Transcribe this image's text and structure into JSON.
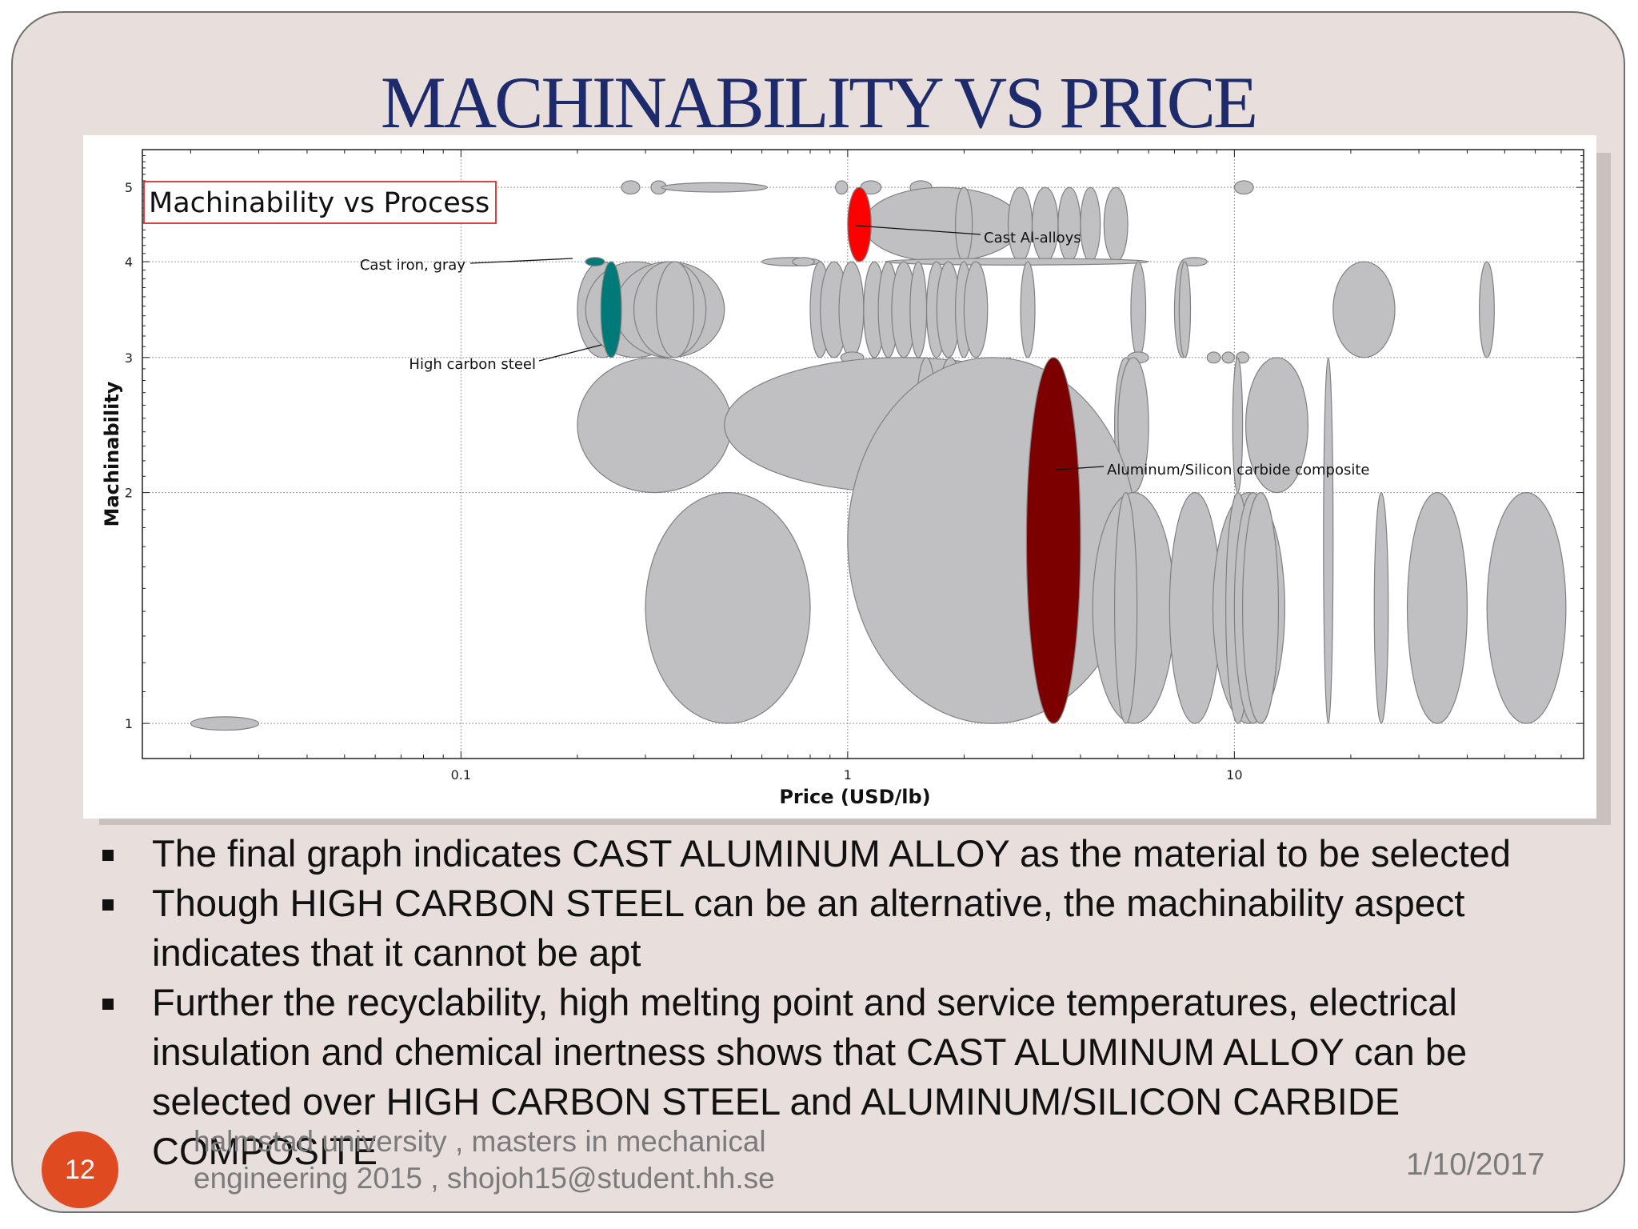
{
  "slide": {
    "title": "MACHINABILITY VS PRICE",
    "bullets": [
      "The final graph indicates CAST ALUMINUM ALLOY  as the material to be selected",
      "Though HIGH CARBON STEEL can be an alternative, the machinability aspect indicates that it cannot be apt",
      "Further the recyclability, high melting point and service temperatures, electrical insulation and chemical inertness shows that CAST ALUMINUM ALLOY can be selected over HIGH CARBON STEEL and ALUMINUM/SILICON CARBIDE COMPOSITE"
    ],
    "page_number": "12",
    "footer": "halmstad university , masters in mechanical engineering 2015 , shojoh15@student.hh.se",
    "date": "1/10/2017"
  },
  "chart_data": {
    "type": "scatter",
    "title": "Machinability vs Process",
    "xlabel": "Price (USD/lb)",
    "ylabel": "Machinability",
    "x_scale": "log",
    "y_scale": "log",
    "xlim": [
      0.015,
      80
    ],
    "ylim": [
      0.9,
      5.6
    ],
    "x_ticks": [
      {
        "value": 0.1,
        "label": "0.1"
      },
      {
        "value": 1,
        "label": "1"
      },
      {
        "value": 10,
        "label": "10"
      }
    ],
    "y_ticks": [
      {
        "value": 1,
        "label": "1"
      },
      {
        "value": 2,
        "label": "2"
      },
      {
        "value": 3,
        "label": "3"
      },
      {
        "value": 4,
        "label": "4"
      },
      {
        "value": 5,
        "label": "5"
      }
    ],
    "grid": true,
    "colors": {
      "default": "#c0bfc2",
      "outline": "#808080",
      "cast_al_alloys": "#ff0000",
      "high_carbon_steel": "#007a78",
      "cast_iron_gray": "#007a78",
      "al_sic_composite": "#7d0000"
    },
    "highlighted": [
      {
        "name": "Cast Al-alloys",
        "color": "cast_al_alloys",
        "x": [
          1.0,
          1.15
        ],
        "y": [
          4.0,
          5.0
        ]
      },
      {
        "name": "Cast iron, gray",
        "color": "cast_iron_gray",
        "x": [
          0.21,
          0.235
        ],
        "y": [
          3.95,
          4.05
        ]
      },
      {
        "name": "High carbon steel",
        "color": "high_carbon_steel",
        "x": [
          0.23,
          0.26
        ],
        "y": [
          3.0,
          4.0
        ]
      },
      {
        "name": "Aluminum/Silicon carbide composite",
        "color": "al_sic_composite",
        "x": [
          2.9,
          4.0
        ],
        "y": [
          1.0,
          3.0
        ]
      }
    ],
    "materials": [
      {
        "x": [
          0.02,
          0.03
        ],
        "y": [
          0.98,
          1.02
        ]
      },
      {
        "x": [
          0.26,
          0.29
        ],
        "y": [
          4.9,
          5.1
        ]
      },
      {
        "x": [
          0.31,
          0.34
        ],
        "y": [
          4.9,
          5.1
        ]
      },
      {
        "x": [
          0.33,
          0.62
        ],
        "y": [
          4.93,
          5.07
        ]
      },
      {
        "x": [
          0.93,
          1.0
        ],
        "y": [
          4.9,
          5.1
        ]
      },
      {
        "x": [
          1.08,
          1.22
        ],
        "y": [
          4.9,
          5.1
        ]
      },
      {
        "x": [
          1.45,
          1.65
        ],
        "y": [
          4.9,
          5.1
        ]
      },
      {
        "x": [
          1.1,
          2.8
        ],
        "y": [
          4.0,
          5.0
        ]
      },
      {
        "x": [
          1.9,
          2.1
        ],
        "y": [
          4.0,
          5.0
        ]
      },
      {
        "x": [
          2.6,
          3.0
        ],
        "y": [
          4.0,
          5.0
        ]
      },
      {
        "x": [
          3.0,
          3.5
        ],
        "y": [
          4.0,
          5.0
        ]
      },
      {
        "x": [
          3.5,
          4.0
        ],
        "y": [
          4.0,
          5.0
        ]
      },
      {
        "x": [
          4.0,
          4.5
        ],
        "y": [
          4.0,
          5.0
        ]
      },
      {
        "x": [
          4.6,
          5.3
        ],
        "y": [
          4.0,
          5.0
        ]
      },
      {
        "x": [
          10.0,
          11.2
        ],
        "y": [
          4.9,
          5.1
        ]
      },
      {
        "x": [
          0.6,
          0.85
        ],
        "y": [
          3.95,
          4.05
        ]
      },
      {
        "x": [
          0.72,
          0.82
        ],
        "y": [
          3.95,
          4.05
        ]
      },
      {
        "x": [
          1.25,
          6.0
        ],
        "y": [
          3.96,
          4.04
        ]
      },
      {
        "x": [
          7.3,
          8.5
        ],
        "y": [
          3.95,
          4.05
        ]
      },
      {
        "x": [
          0.2,
          0.27
        ],
        "y": [
          3.0,
          4.0
        ]
      },
      {
        "x": [
          0.21,
          0.38
        ],
        "y": [
          3.0,
          4.0
        ]
      },
      {
        "x": [
          0.25,
          0.48
        ],
        "y": [
          3.0,
          4.0
        ]
      },
      {
        "x": [
          0.28,
          0.43
        ],
        "y": [
          3.0,
          4.0
        ]
      },
      {
        "x": [
          0.32,
          0.4
        ],
        "y": [
          3.0,
          4.0
        ]
      },
      {
        "x": [
          0.8,
          0.9
        ],
        "y": [
          3.0,
          4.0
        ]
      },
      {
        "x": [
          0.85,
          1.0
        ],
        "y": [
          3.0,
          4.0
        ]
      },
      {
        "x": [
          0.95,
          1.1
        ],
        "y": [
          3.0,
          4.0
        ]
      },
      {
        "x": [
          1.1,
          1.25
        ],
        "y": [
          3.0,
          4.0
        ]
      },
      {
        "x": [
          1.2,
          1.35
        ],
        "y": [
          3.0,
          4.0
        ]
      },
      {
        "x": [
          1.3,
          1.5
        ],
        "y": [
          3.0,
          4.0
        ]
      },
      {
        "x": [
          1.45,
          1.6
        ],
        "y": [
          3.0,
          4.0
        ]
      },
      {
        "x": [
          1.6,
          1.8
        ],
        "y": [
          3.0,
          4.0
        ]
      },
      {
        "x": [
          1.7,
          1.95
        ],
        "y": [
          3.0,
          4.0
        ]
      },
      {
        "x": [
          1.9,
          2.1
        ],
        "y": [
          3.0,
          4.0
        ]
      },
      {
        "x": [
          2.0,
          2.3
        ],
        "y": [
          3.0,
          4.0
        ]
      },
      {
        "x": [
          2.8,
          3.05
        ],
        "y": [
          3.0,
          4.0
        ]
      },
      {
        "x": [
          5.4,
          5.9
        ],
        "y": [
          3.0,
          4.0
        ]
      },
      {
        "x": [
          7.0,
          7.7
        ],
        "y": [
          3.0,
          4.0
        ]
      },
      {
        "x": [
          7.2,
          7.7
        ],
        "y": [
          3.0,
          4.0
        ]
      },
      {
        "x": [
          18.0,
          26.0
        ],
        "y": [
          3.0,
          4.0
        ]
      },
      {
        "x": [
          43.0,
          47.0
        ],
        "y": [
          3.0,
          4.0
        ]
      },
      {
        "x": [
          0.96,
          1.1
        ],
        "y": [
          2.95,
          3.05
        ]
      },
      {
        "x": [
          5.3,
          6.0
        ],
        "y": [
          2.95,
          3.05
        ]
      },
      {
        "x": [
          8.5,
          9.2
        ],
        "y": [
          2.95,
          3.05
        ]
      },
      {
        "x": [
          9.3,
          10.0
        ],
        "y": [
          2.95,
          3.05
        ]
      },
      {
        "x": [
          10.1,
          10.9
        ],
        "y": [
          2.95,
          3.05
        ]
      },
      {
        "x": [
          0.2,
          0.5
        ],
        "y": [
          2.0,
          3.0
        ]
      },
      {
        "x": [
          0.48,
          4.0
        ],
        "y": [
          2.0,
          3.0
        ]
      },
      {
        "x": [
          1.5,
          1.7
        ],
        "y": [
          2.0,
          3.0
        ]
      },
      {
        "x": [
          1.7,
          2.0
        ],
        "y": [
          2.0,
          3.0
        ]
      },
      {
        "x": [
          2.3,
          2.55
        ],
        "y": [
          2.0,
          3.0
        ]
      },
      {
        "x": [
          2.5,
          2.75
        ],
        "y": [
          2.0,
          3.0
        ]
      },
      {
        "x": [
          4.9,
          5.6
        ],
        "y": [
          2.0,
          3.0
        ]
      },
      {
        "x": [
          5.0,
          6.0
        ],
        "y": [
          2.0,
          3.0
        ]
      },
      {
        "x": [
          9.9,
          10.5
        ],
        "y": [
          2.0,
          3.0
        ]
      },
      {
        "x": [
          10.7,
          15.5
        ],
        "y": [
          2.0,
          3.0
        ]
      },
      {
        "x": [
          17.0,
          18.0
        ],
        "y": [
          1.0,
          3.0
        ]
      },
      {
        "x": [
          0.3,
          0.8
        ],
        "y": [
          1.0,
          2.0
        ]
      },
      {
        "x": [
          1.0,
          5.6
        ],
        "y": [
          1.0,
          3.0
        ]
      },
      {
        "x": [
          4.3,
          7.0
        ],
        "y": [
          1.0,
          2.0
        ]
      },
      {
        "x": [
          4.9,
          5.6
        ],
        "y": [
          1.0,
          2.0
        ]
      },
      {
        "x": [
          6.8,
          9.2
        ],
        "y": [
          1.0,
          2.0
        ]
      },
      {
        "x": [
          8.8,
          13.5
        ],
        "y": [
          1.0,
          2.0
        ]
      },
      {
        "x": [
          9.5,
          11.0
        ],
        "y": [
          1.0,
          2.0
        ]
      },
      {
        "x": [
          10.0,
          12.5
        ],
        "y": [
          1.0,
          2.0
        ]
      },
      {
        "x": [
          10.5,
          13.0
        ],
        "y": [
          1.0,
          2.0
        ]
      },
      {
        "x": [
          23.0,
          25.0
        ],
        "y": [
          1.0,
          2.0
        ]
      },
      {
        "x": [
          28.0,
          40.0
        ],
        "y": [
          1.0,
          2.0
        ]
      },
      {
        "x": [
          45.0,
          72.0
        ],
        "y": [
          1.0,
          2.0
        ]
      }
    ],
    "labels": [
      {
        "text": "Machinability vs Process",
        "role": "title-box"
      },
      {
        "text": "Cast Al-alloys",
        "points_to": "Cast Al-alloys"
      },
      {
        "text": "Cast iron, gray",
        "points_to": "Cast iron, gray"
      },
      {
        "text": "High carbon steel",
        "points_to": "High carbon steel"
      },
      {
        "text": "Aluminum/Silicon carbide composite",
        "points_to": "Aluminum/Silicon carbide composite"
      }
    ]
  }
}
